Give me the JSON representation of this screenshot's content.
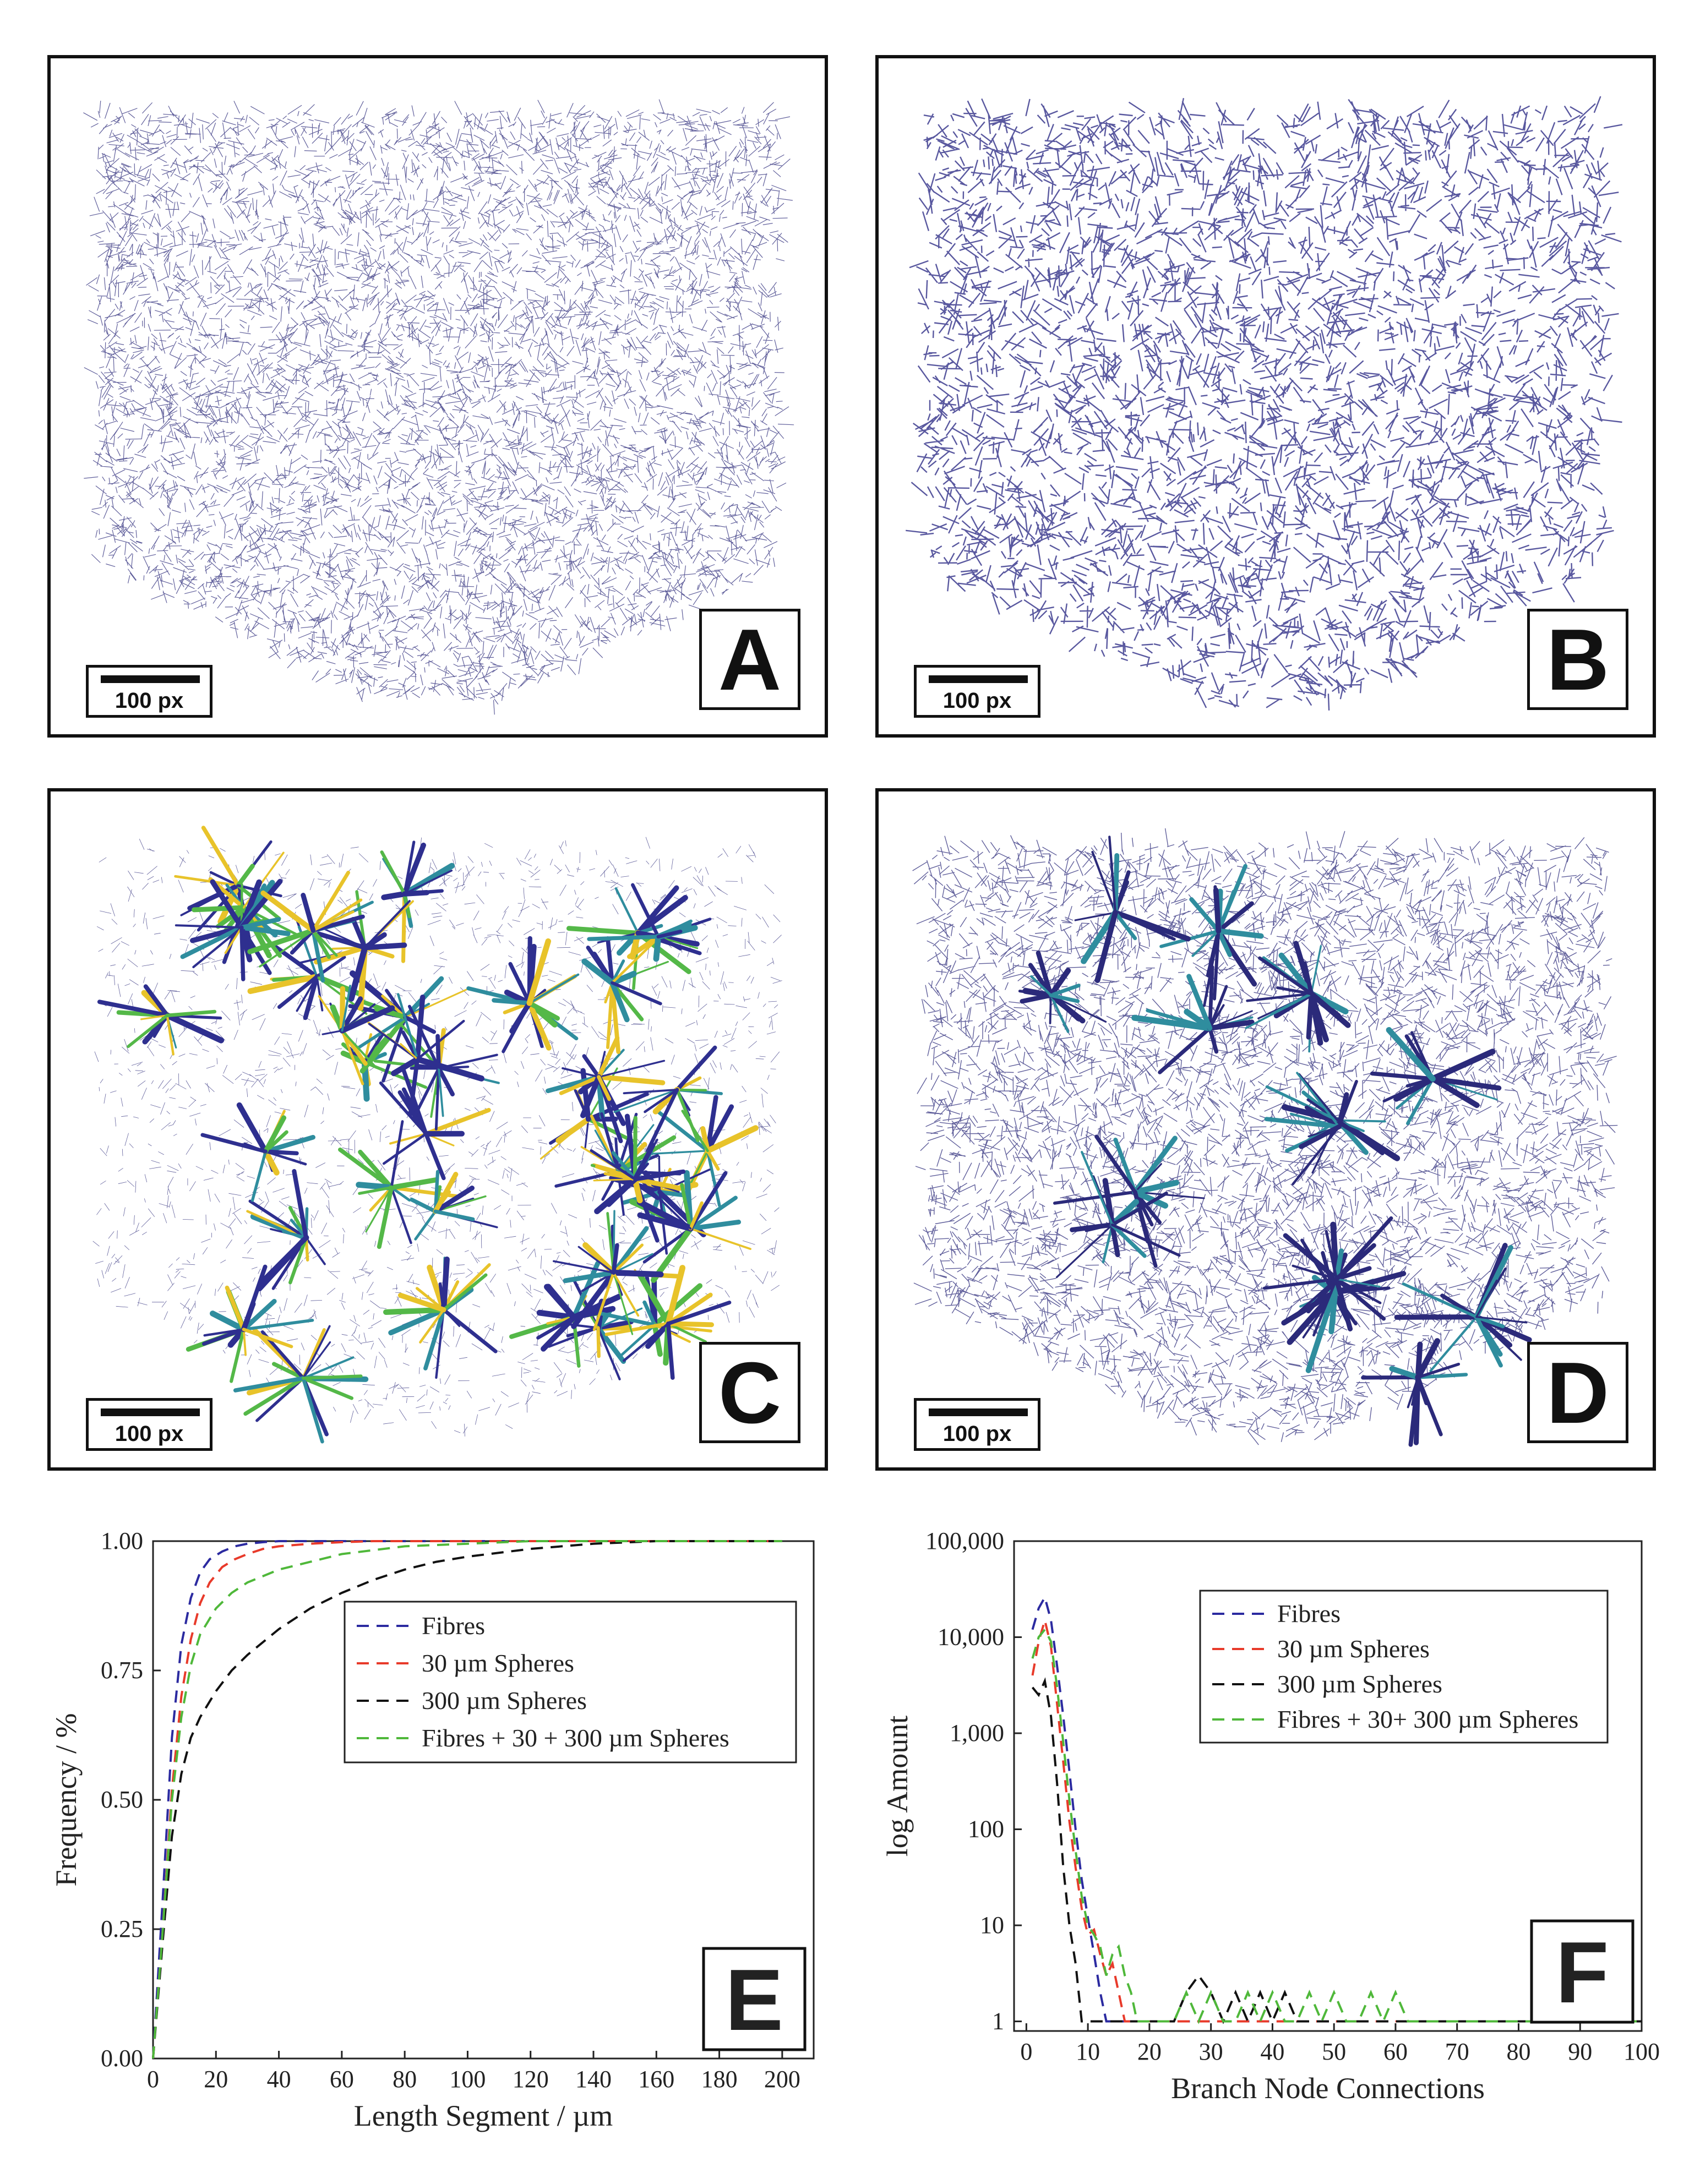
{
  "panels": {
    "a": {
      "letter": "A",
      "scale": "100 px"
    },
    "b": {
      "letter": "B",
      "scale": "100 px"
    },
    "c": {
      "letter": "C",
      "scale": "100 px"
    },
    "d": {
      "letter": "D",
      "scale": "100 px"
    },
    "e": {
      "letter": "E"
    },
    "f": {
      "letter": "F"
    }
  },
  "colors": {
    "network": "#2b2a7a",
    "network_b": "#22207f",
    "c_blue": "#2e2f8f",
    "c_green": "#54b848",
    "c_yellow": "#e8c32a",
    "c_teal": "#2f8d9e"
  },
  "chart_data": [
    {
      "id": "E",
      "type": "line",
      "xlabel": "Length Segment / µm",
      "ylabel": "Frequency / %",
      "xlim": [
        0,
        210
      ],
      "ylim": [
        0,
        1.0
      ],
      "xticks": [
        0,
        20,
        40,
        60,
        80,
        100,
        120,
        140,
        160,
        180,
        200
      ],
      "yticks": [
        0.0,
        0.25,
        0.5,
        0.75,
        1.0
      ],
      "ytick_labels": [
        "0.00",
        "0.25",
        "0.50",
        "0.75",
        "1.00"
      ],
      "legend_position": "top-right",
      "series": [
        {
          "name": "Fibres",
          "color": "#2b2aa0",
          "x": [
            0,
            3,
            6,
            9,
            12,
            15,
            18,
            22,
            26,
            30,
            35,
            40,
            50,
            60,
            80,
            100,
            200
          ],
          "y": [
            0,
            0.3,
            0.62,
            0.8,
            0.89,
            0.94,
            0.965,
            0.98,
            0.99,
            0.995,
            0.998,
            1.0,
            1.0,
            1.0,
            1.0,
            1.0,
            1.0
          ]
        },
        {
          "name": "30 µm Spheres",
          "color": "#e83a2a",
          "x": [
            0,
            3,
            6,
            9,
            12,
            15,
            18,
            22,
            26,
            30,
            35,
            40,
            50,
            60,
            70,
            80,
            100,
            200
          ],
          "y": [
            0,
            0.24,
            0.52,
            0.7,
            0.81,
            0.88,
            0.92,
            0.95,
            0.965,
            0.975,
            0.985,
            0.99,
            0.995,
            0.998,
            1.0,
            1.0,
            1.0,
            1.0
          ]
        },
        {
          "name": "300 µm Spheres",
          "color": "#111111",
          "x": [
            0,
            3,
            6,
            9,
            12,
            15,
            20,
            25,
            30,
            40,
            50,
            60,
            70,
            80,
            90,
            100,
            120,
            140,
            160,
            200
          ],
          "y": [
            0,
            0.22,
            0.43,
            0.55,
            0.62,
            0.66,
            0.71,
            0.75,
            0.78,
            0.83,
            0.87,
            0.9,
            0.925,
            0.945,
            0.96,
            0.97,
            0.985,
            0.995,
            1.0,
            1.0
          ]
        },
        {
          "name": "Fibres + 30 + 300 µm Spheres",
          "color": "#4fb83a",
          "x": [
            0,
            3,
            6,
            9,
            12,
            15,
            20,
            25,
            30,
            40,
            50,
            60,
            80,
            100,
            120,
            160,
            200
          ],
          "y": [
            0,
            0.24,
            0.5,
            0.66,
            0.76,
            0.82,
            0.87,
            0.9,
            0.92,
            0.945,
            0.96,
            0.975,
            0.99,
            0.995,
            1.0,
            1.0,
            1.0
          ]
        }
      ]
    },
    {
      "id": "F",
      "type": "line",
      "xlabel": "Branch Node Connections",
      "ylabel": "log Amount",
      "xlim": [
        -2,
        100
      ],
      "ylim_log10": [
        -0.1,
        5
      ],
      "xticks": [
        0,
        10,
        20,
        30,
        40,
        50,
        60,
        70,
        80,
        90,
        100
      ],
      "yticks": [
        1,
        10,
        100,
        1000,
        10000,
        100000
      ],
      "ytick_labels": [
        "1",
        "10",
        "100",
        "1,000",
        "10,000",
        "100,000"
      ],
      "legend_position": "top-right",
      "series": [
        {
          "name": "Fibres",
          "color": "#2b2aa0",
          "x": [
            1,
            2,
            3,
            4,
            5,
            6,
            7,
            8,
            9,
            10,
            11,
            12,
            13,
            14,
            15,
            16,
            100
          ],
          "y": [
            12000,
            20000,
            26000,
            15000,
            5000,
            1500,
            400,
            100,
            30,
            12,
            5,
            2,
            1,
            1,
            1,
            1,
            1
          ]
        },
        {
          "name": "30 µm Spheres",
          "color": "#e83a2a",
          "x": [
            1,
            2,
            3,
            4,
            5,
            6,
            7,
            8,
            9,
            10,
            11,
            12,
            13,
            14,
            15,
            16,
            17,
            18,
            100
          ],
          "y": [
            4000,
            9000,
            15000,
            8000,
            2000,
            500,
            120,
            40,
            15,
            8,
            9,
            5,
            3,
            4,
            2,
            1,
            1,
            1,
            1
          ]
        },
        {
          "name": "300 µm Spheres",
          "color": "#111111",
          "x": [
            1,
            2,
            3,
            4,
            5,
            6,
            7,
            8,
            9,
            10,
            12,
            14,
            16,
            18,
            20,
            22,
            24,
            26,
            28,
            30,
            32,
            34,
            36,
            38,
            40,
            42,
            44,
            100
          ],
          "y": [
            3000,
            2500,
            3500,
            1500,
            300,
            40,
            10,
            4,
            1,
            1,
            1,
            1,
            1,
            1,
            1,
            1,
            1,
            2,
            3,
            2,
            1,
            2,
            1,
            2,
            1,
            2,
            1,
            1
          ]
        },
        {
          "name": "Fibres + 30+ 300 µm Spheres",
          "color": "#4fb83a",
          "x": [
            1,
            2,
            3,
            4,
            5,
            6,
            7,
            8,
            9,
            10,
            11,
            12,
            13,
            14,
            15,
            16,
            17,
            18,
            20,
            22,
            24,
            26,
            28,
            30,
            32,
            34,
            36,
            38,
            40,
            42,
            44,
            46,
            48,
            50,
            52,
            54,
            56,
            58,
            60,
            62,
            64,
            100
          ],
          "y": [
            6000,
            10000,
            12000,
            9000,
            3000,
            800,
            200,
            60,
            20,
            10,
            8,
            6,
            3,
            5,
            6,
            3,
            2,
            1,
            1,
            1,
            1,
            2,
            1,
            2,
            1,
            1,
            2,
            1,
            2,
            1,
            1,
            2,
            1,
            2,
            1,
            1,
            2,
            1,
            2,
            1,
            1,
            1
          ]
        }
      ]
    }
  ]
}
